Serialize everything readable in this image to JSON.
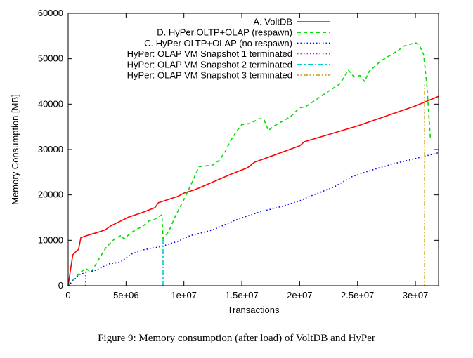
{
  "chart_data": {
    "type": "line",
    "xlabel": "Transactions",
    "ylabel": "Memory Consumption [MB]",
    "xlim": [
      0,
      32000000
    ],
    "ylim": [
      0,
      60000
    ],
    "x_ticks": [
      {
        "value": 0,
        "label": "0"
      },
      {
        "value": 5000000,
        "label": "5e+06"
      },
      {
        "value": 10000000,
        "label": "1e+07"
      },
      {
        "value": 15000000,
        "label": "1.5e+07"
      },
      {
        "value": 20000000,
        "label": "2e+07"
      },
      {
        "value": 25000000,
        "label": "2.5e+07"
      },
      {
        "value": 30000000,
        "label": "3e+07"
      }
    ],
    "y_ticks": [
      {
        "value": 0,
        "label": "0"
      },
      {
        "value": 10000,
        "label": "10000"
      },
      {
        "value": 20000,
        "label": "20000"
      },
      {
        "value": 30000,
        "label": "30000"
      },
      {
        "value": 40000,
        "label": "40000"
      },
      {
        "value": 50000,
        "label": "50000"
      },
      {
        "value": 60000,
        "label": "60000"
      }
    ],
    "grid": false,
    "legend_position": "top-right",
    "series": [
      {
        "name": "A. VoltDB",
        "color": "#ff0000",
        "dash": "",
        "points": [
          [
            0,
            0
          ],
          [
            200000,
            3500
          ],
          [
            400000,
            6800
          ],
          [
            700000,
            7600
          ],
          [
            900000,
            8000
          ],
          [
            1100000,
            10600
          ],
          [
            1800000,
            11200
          ],
          [
            2500000,
            11700
          ],
          [
            3200000,
            12300
          ],
          [
            3700000,
            13200
          ],
          [
            4500000,
            14200
          ],
          [
            5200000,
            15100
          ],
          [
            6500000,
            16200
          ],
          [
            7500000,
            17200
          ],
          [
            7800000,
            18300
          ],
          [
            9500000,
            19700
          ],
          [
            10000000,
            20400
          ],
          [
            11000000,
            21200
          ],
          [
            14000000,
            24500
          ],
          [
            15500000,
            26000
          ],
          [
            16100000,
            27200
          ],
          [
            20000000,
            30800
          ],
          [
            20400000,
            31700
          ],
          [
            25000000,
            35200
          ],
          [
            30000000,
            39600
          ],
          [
            32000000,
            41700
          ]
        ]
      },
      {
        "name": "D. HyPer OLTP+OLAP (respawn)",
        "color": "#00dd00",
        "dash": "5,4",
        "points": [
          [
            0,
            0
          ],
          [
            500000,
            1500
          ],
          [
            1000000,
            2800
          ],
          [
            1500000,
            3800
          ],
          [
            2000000,
            3000
          ],
          [
            2800000,
            6500
          ],
          [
            3300000,
            8500
          ],
          [
            4000000,
            10300
          ],
          [
            4600000,
            11100
          ],
          [
            4800000,
            10300
          ],
          [
            5500000,
            11800
          ],
          [
            6500000,
            13200
          ],
          [
            7000000,
            14300
          ],
          [
            7400000,
            14500
          ],
          [
            7800000,
            15200
          ],
          [
            8100000,
            15600
          ],
          [
            8200000,
            10400
          ],
          [
            8700000,
            12000
          ],
          [
            9200000,
            15000
          ],
          [
            10000000,
            19000
          ],
          [
            10600000,
            22200
          ],
          [
            11300000,
            26200
          ],
          [
            12500000,
            26600
          ],
          [
            13000000,
            27500
          ],
          [
            13500000,
            29200
          ],
          [
            14000000,
            31800
          ],
          [
            14500000,
            33800
          ],
          [
            15000000,
            35500
          ],
          [
            15700000,
            35700
          ],
          [
            16500000,
            36800
          ],
          [
            16900000,
            36700
          ],
          [
            17300000,
            34200
          ],
          [
            17800000,
            35200
          ],
          [
            19200000,
            37200
          ],
          [
            20000000,
            39200
          ],
          [
            20500000,
            39400
          ],
          [
            22000000,
            42000
          ],
          [
            23500000,
            44500
          ],
          [
            24200000,
            47500
          ],
          [
            24700000,
            46000
          ],
          [
            25200000,
            46300
          ],
          [
            25600000,
            45000
          ],
          [
            26000000,
            47200
          ],
          [
            27000000,
            49500
          ],
          [
            28500000,
            51800
          ],
          [
            29000000,
            52800
          ],
          [
            30000000,
            53500
          ],
          [
            30300000,
            53200
          ],
          [
            30700000,
            51000
          ],
          [
            31000000,
            44000
          ],
          [
            31300000,
            32000
          ]
        ]
      },
      {
        "name": "C. HyPer OLTP+OLAP (no respawn)",
        "color": "#0000ff",
        "dash": "1.5,3",
        "points": [
          [
            0,
            0
          ],
          [
            1000000,
            2500
          ],
          [
            2500000,
            3500
          ],
          [
            3500000,
            4800
          ],
          [
            4500000,
            5200
          ],
          [
            5500000,
            7000
          ],
          [
            6500000,
            7900
          ],
          [
            8000000,
            8600
          ],
          [
            9500000,
            9800
          ],
          [
            10500000,
            11000
          ],
          [
            12500000,
            12300
          ],
          [
            14500000,
            14500
          ],
          [
            16500000,
            16200
          ],
          [
            18500000,
            17500
          ],
          [
            20000000,
            18700
          ],
          [
            21000000,
            19800
          ],
          [
            23000000,
            21800
          ],
          [
            24500000,
            24000
          ],
          [
            26000000,
            25300
          ],
          [
            28000000,
            26800
          ],
          [
            30000000,
            28000
          ],
          [
            32000000,
            29300
          ]
        ]
      },
      {
        "name": "HyPer: OLAP VM Snapshot 1 terminated",
        "color": "#ff00ff",
        "dash": "1.5,3",
        "points": [
          [
            1500000,
            0
          ],
          [
            1500000,
            2700
          ]
        ]
      },
      {
        "name": "HyPer: OLAP VM Snapshot 2 terminated",
        "color": "#00cccc",
        "dash": "7,3,2,3",
        "points": [
          [
            8200000,
            0
          ],
          [
            8200000,
            10300
          ]
        ]
      },
      {
        "name": "HyPer: OLAP VM Snapshot 3 terminated",
        "color": "#cc9900",
        "dash": "2,2.5,2,2.5,6,2.5",
        "points": [
          [
            30800000,
            0
          ],
          [
            30800000,
            44500
          ]
        ]
      }
    ]
  },
  "caption": "Figure 9: Memory consumption (after load) of VoltDB and HyPer"
}
